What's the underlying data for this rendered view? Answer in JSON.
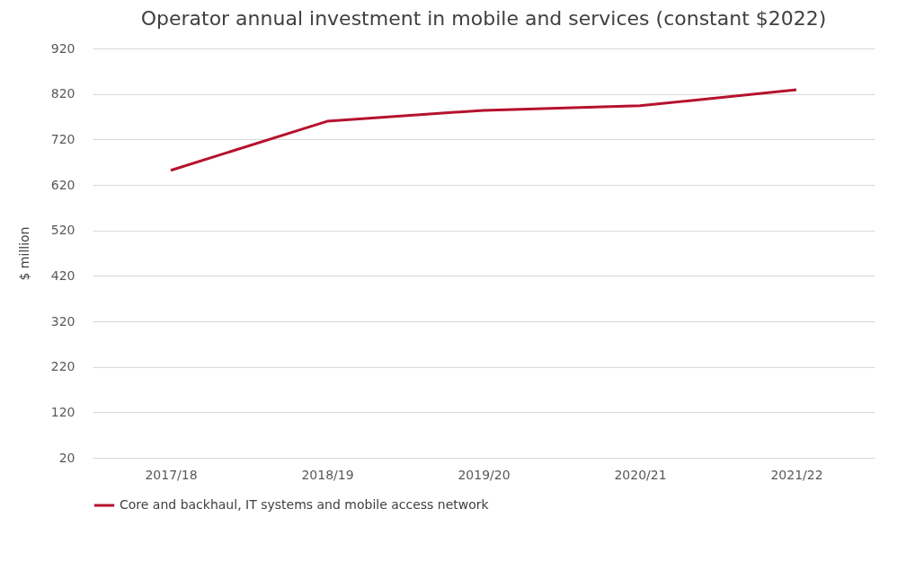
{
  "chart_data": {
    "type": "line",
    "title": "Operator annual investment in mobile and services (constant $2022)",
    "ylabel": "$ million",
    "categories": [
      "2017/18",
      "2018/19",
      "2019/20",
      "2020/21",
      "2021/22"
    ],
    "series": [
      {
        "name": "Core and backhaul, IT systems and mobile access network",
        "color": "#b5122e",
        "values": [
          652,
          760,
          784,
          794,
          829
        ]
      }
    ],
    "ylim": [
      20,
      920
    ],
    "yticks": [
      20,
      120,
      220,
      320,
      420,
      520,
      620,
      720,
      820,
      920
    ],
    "grid": "y",
    "legend": "bottom",
    "marker": "none",
    "line_style": "solid"
  }
}
